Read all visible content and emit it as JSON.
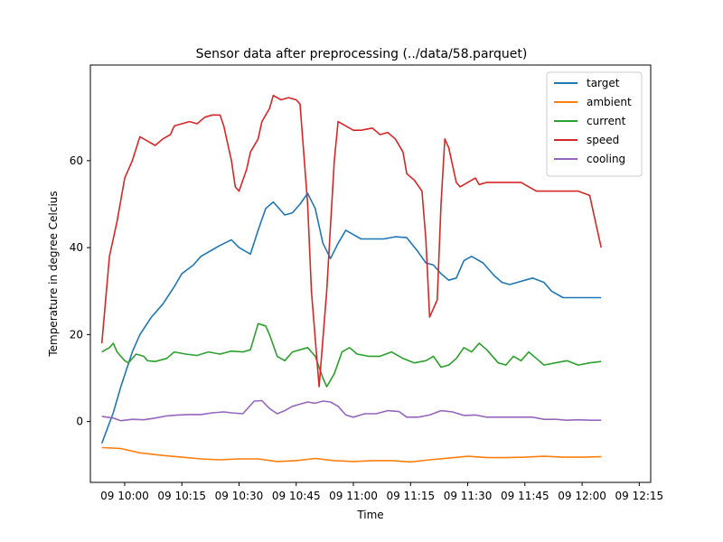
{
  "chart_data": {
    "type": "line",
    "title": "Sensor data after preprocessing (../data/58.parquet)",
    "xlabel": "Time",
    "ylabel": "Temperature in degree Celcius",
    "x_tick_labels": [
      "09 10:00",
      "09 10:15",
      "09 10:30",
      "09 10:45",
      "09 11:00",
      "09 11:15",
      "09 11:30",
      "09 11:45",
      "09 12:00",
      "09 12:15"
    ],
    "x_tick_times": [
      "10:00",
      "10:15",
      "10:30",
      "10:45",
      "11:00",
      "11:15",
      "11:30",
      "11:45",
      "12:00",
      "12:15"
    ],
    "y_ticks": [
      0,
      20,
      40,
      60
    ],
    "ylim": [
      -14,
      82
    ],
    "xlim": [
      "09:51",
      "12:18"
    ],
    "legend_position": "top-right",
    "grid": false,
    "series": [
      {
        "name": "target",
        "color": "#1f77b4",
        "points": [
          [
            "09:54",
            -5
          ],
          [
            "09:57",
            2
          ],
          [
            "09:59",
            8
          ],
          [
            "10:02",
            16
          ],
          [
            "10:04",
            20
          ],
          [
            "10:07",
            24
          ],
          [
            "10:10",
            27
          ],
          [
            "10:13",
            31
          ],
          [
            "10:15",
            34
          ],
          [
            "10:18",
            36
          ],
          [
            "10:20",
            38
          ],
          [
            "10:23",
            39.5
          ],
          [
            "10:25",
            40.5
          ],
          [
            "10:28",
            41.8
          ],
          [
            "10:30",
            40
          ],
          [
            "10:33",
            38.5
          ],
          [
            "10:35",
            44
          ],
          [
            "10:37",
            49
          ],
          [
            "10:39",
            50.5
          ],
          [
            "10:42",
            47.5
          ],
          [
            "10:44",
            48
          ],
          [
            "10:46",
            50
          ],
          [
            "10:48",
            52.5
          ],
          [
            "10:50",
            49
          ],
          [
            "10:52",
            41
          ],
          [
            "10:54",
            37.5
          ],
          [
            "10:56",
            41
          ],
          [
            "10:58",
            44
          ],
          [
            "11:00",
            43
          ],
          [
            "11:02",
            42
          ],
          [
            "11:05",
            42
          ],
          [
            "11:08",
            42
          ],
          [
            "11:11",
            42.5
          ],
          [
            "11:14",
            42.3
          ],
          [
            "11:17",
            39
          ],
          [
            "11:19",
            36.5
          ],
          [
            "11:21",
            36
          ],
          [
            "11:23",
            34
          ],
          [
            "11:25",
            32.5
          ],
          [
            "11:27",
            33
          ],
          [
            "11:29",
            37
          ],
          [
            "11:31",
            38
          ],
          [
            "11:34",
            36.5
          ],
          [
            "11:37",
            33.5
          ],
          [
            "11:39",
            32
          ],
          [
            "11:41",
            31.5
          ],
          [
            "11:43",
            32
          ],
          [
            "11:45",
            32.5
          ],
          [
            "11:47",
            33
          ],
          [
            "11:50",
            32
          ],
          [
            "11:52",
            30
          ],
          [
            "11:55",
            28.5
          ],
          [
            "11:58",
            28.5
          ],
          [
            "12:01",
            28.5
          ],
          [
            "12:05",
            28.5
          ]
        ]
      },
      {
        "name": "ambient",
        "color": "#ff7f0e",
        "points": [
          [
            "09:54",
            -6
          ],
          [
            "09:59",
            -6.2
          ],
          [
            "10:04",
            -7.2
          ],
          [
            "10:10",
            -7.8
          ],
          [
            "10:15",
            -8.2
          ],
          [
            "10:20",
            -8.6
          ],
          [
            "10:25",
            -8.8
          ],
          [
            "10:30",
            -8.6
          ],
          [
            "10:35",
            -8.6
          ],
          [
            "10:40",
            -9.2
          ],
          [
            "10:45",
            -9
          ],
          [
            "10:50",
            -8.5
          ],
          [
            "10:55",
            -9
          ],
          [
            "11:00",
            -9.2
          ],
          [
            "11:05",
            -9
          ],
          [
            "11:10",
            -9
          ],
          [
            "11:15",
            -9.3
          ],
          [
            "11:20",
            -8.8
          ],
          [
            "11:25",
            -8.4
          ],
          [
            "11:30",
            -8
          ],
          [
            "11:35",
            -8.3
          ],
          [
            "11:40",
            -8.3
          ],
          [
            "11:45",
            -8.2
          ],
          [
            "11:50",
            -8
          ],
          [
            "11:55",
            -8.2
          ],
          [
            "12:00",
            -8.2
          ],
          [
            "12:05",
            -8.1
          ]
        ]
      },
      {
        "name": "current",
        "color": "#2ca02c",
        "points": [
          [
            "09:54",
            16
          ],
          [
            "09:56",
            17
          ],
          [
            "09:57",
            18
          ],
          [
            "09:58",
            16
          ],
          [
            "10:00",
            14
          ],
          [
            "10:01",
            13.5
          ],
          [
            "10:03",
            15.5
          ],
          [
            "10:05",
            15
          ],
          [
            "10:06",
            14
          ],
          [
            "10:08",
            13.8
          ],
          [
            "10:11",
            14.5
          ],
          [
            "10:13",
            16
          ],
          [
            "10:16",
            15.5
          ],
          [
            "10:19",
            15.2
          ],
          [
            "10:22",
            16
          ],
          [
            "10:25",
            15.5
          ],
          [
            "10:28",
            16.2
          ],
          [
            "10:31",
            16
          ],
          [
            "10:33",
            16.5
          ],
          [
            "10:35",
            22.5
          ],
          [
            "10:37",
            22
          ],
          [
            "10:38",
            20
          ],
          [
            "10:40",
            15
          ],
          [
            "10:42",
            14
          ],
          [
            "10:44",
            16
          ],
          [
            "10:46",
            16.5
          ],
          [
            "10:48",
            17
          ],
          [
            "10:50",
            15
          ],
          [
            "10:52",
            10
          ],
          [
            "10:53",
            8
          ],
          [
            "10:55",
            11
          ],
          [
            "10:57",
            16
          ],
          [
            "10:59",
            17
          ],
          [
            "11:01",
            15.5
          ],
          [
            "11:04",
            15
          ],
          [
            "11:07",
            15
          ],
          [
            "11:10",
            16
          ],
          [
            "11:13",
            14.5
          ],
          [
            "11:16",
            13.5
          ],
          [
            "11:19",
            14
          ],
          [
            "11:21",
            15
          ],
          [
            "11:23",
            12.5
          ],
          [
            "11:25",
            13
          ],
          [
            "11:27",
            14.5
          ],
          [
            "11:29",
            17
          ],
          [
            "11:31",
            16
          ],
          [
            "11:33",
            18
          ],
          [
            "11:35",
            16.5
          ],
          [
            "11:38",
            13.5
          ],
          [
            "11:40",
            13
          ],
          [
            "11:42",
            15
          ],
          [
            "11:44",
            14
          ],
          [
            "11:46",
            16
          ],
          [
            "11:48",
            14.5
          ],
          [
            "11:50",
            13
          ],
          [
            "11:53",
            13.5
          ],
          [
            "11:56",
            14
          ],
          [
            "11:59",
            13
          ],
          [
            "12:02",
            13.5
          ],
          [
            "12:05",
            13.8
          ]
        ]
      },
      {
        "name": "speed",
        "color": "#d62728",
        "points": [
          [
            "09:54",
            18
          ],
          [
            "09:56",
            38
          ],
          [
            "09:57",
            42
          ],
          [
            "09:58",
            46
          ],
          [
            "10:00",
            56
          ],
          [
            "10:02",
            60
          ],
          [
            "10:04",
            65.5
          ],
          [
            "10:06",
            64.5
          ],
          [
            "10:08",
            63.5
          ],
          [
            "10:10",
            65
          ],
          [
            "10:12",
            66
          ],
          [
            "10:13",
            68
          ],
          [
            "10:15",
            68.5
          ],
          [
            "10:17",
            69
          ],
          [
            "10:19",
            68.5
          ],
          [
            "10:21",
            70
          ],
          [
            "10:23",
            70.5
          ],
          [
            "10:25",
            70.5
          ],
          [
            "10:26",
            68
          ],
          [
            "10:28",
            60
          ],
          [
            "10:29",
            54
          ],
          [
            "10:30",
            53
          ],
          [
            "10:32",
            58
          ],
          [
            "10:33",
            62
          ],
          [
            "10:35",
            65
          ],
          [
            "10:36",
            69
          ],
          [
            "10:38",
            72
          ],
          [
            "10:39",
            75
          ],
          [
            "10:41",
            74
          ],
          [
            "10:43",
            74.5
          ],
          [
            "10:45",
            74
          ],
          [
            "10:46",
            73
          ],
          [
            "10:48",
            50
          ],
          [
            "10:49",
            30
          ],
          [
            "10:51",
            8
          ],
          [
            "10:53",
            30
          ],
          [
            "10:55",
            60
          ],
          [
            "10:56",
            69
          ],
          [
            "10:58",
            68
          ],
          [
            "11:00",
            67
          ],
          [
            "11:02",
            67
          ],
          [
            "11:05",
            67.5
          ],
          [
            "11:07",
            66
          ],
          [
            "11:09",
            66.5
          ],
          [
            "11:11",
            65
          ],
          [
            "11:13",
            62
          ],
          [
            "11:14",
            57
          ],
          [
            "11:16",
            55.5
          ],
          [
            "11:18",
            53
          ],
          [
            "11:19",
            42
          ],
          [
            "11:20",
            24
          ],
          [
            "11:22",
            28
          ],
          [
            "11:23",
            50
          ],
          [
            "11:24",
            65
          ],
          [
            "11:25",
            63
          ],
          [
            "11:27",
            55
          ],
          [
            "11:28",
            54
          ],
          [
            "11:30",
            55
          ],
          [
            "11:32",
            56
          ],
          [
            "11:33",
            54.5
          ],
          [
            "11:35",
            55
          ],
          [
            "11:38",
            55
          ],
          [
            "11:41",
            55
          ],
          [
            "11:44",
            55
          ],
          [
            "11:46",
            54
          ],
          [
            "11:48",
            53
          ],
          [
            "11:50",
            53
          ],
          [
            "11:53",
            53
          ],
          [
            "11:56",
            53
          ],
          [
            "11:59",
            53
          ],
          [
            "12:02",
            52
          ],
          [
            "12:05",
            40
          ]
        ]
      },
      {
        "name": "cooling",
        "color": "#9467bd",
        "points": [
          [
            "09:54",
            1.2
          ],
          [
            "09:57",
            0.8
          ],
          [
            "09:59",
            0.2
          ],
          [
            "10:02",
            0.5
          ],
          [
            "10:05",
            0.4
          ],
          [
            "10:08",
            0.8
          ],
          [
            "10:11",
            1.3
          ],
          [
            "10:14",
            1.5
          ],
          [
            "10:17",
            1.6
          ],
          [
            "10:20",
            1.6
          ],
          [
            "10:23",
            2
          ],
          [
            "10:26",
            2.2
          ],
          [
            "10:28",
            2
          ],
          [
            "10:31",
            1.8
          ],
          [
            "10:34",
            4.7
          ],
          [
            "10:36",
            4.8
          ],
          [
            "10:38",
            3
          ],
          [
            "10:40",
            1.8
          ],
          [
            "10:42",
            2.5
          ],
          [
            "10:44",
            3.5
          ],
          [
            "10:46",
            4
          ],
          [
            "10:48",
            4.5
          ],
          [
            "10:50",
            4.2
          ],
          [
            "10:52",
            4.7
          ],
          [
            "10:54",
            4.5
          ],
          [
            "10:56",
            3.5
          ],
          [
            "10:58",
            1.5
          ],
          [
            "11:00",
            1
          ],
          [
            "11:03",
            1.8
          ],
          [
            "11:06",
            1.8
          ],
          [
            "11:09",
            2.5
          ],
          [
            "11:12",
            2.3
          ],
          [
            "11:14",
            1
          ],
          [
            "11:17",
            1
          ],
          [
            "11:20",
            1.5
          ],
          [
            "11:23",
            2.5
          ],
          [
            "11:26",
            2.2
          ],
          [
            "11:29",
            1.4
          ],
          [
            "11:32",
            1.5
          ],
          [
            "11:35",
            1
          ],
          [
            "11:38",
            1
          ],
          [
            "11:41",
            1
          ],
          [
            "11:44",
            1
          ],
          [
            "11:47",
            1
          ],
          [
            "11:50",
            0.5
          ],
          [
            "11:53",
            0.5
          ],
          [
            "11:56",
            0.3
          ],
          [
            "11:59",
            0.4
          ],
          [
            "12:02",
            0.3
          ],
          [
            "12:05",
            0.3
          ]
        ]
      }
    ]
  }
}
